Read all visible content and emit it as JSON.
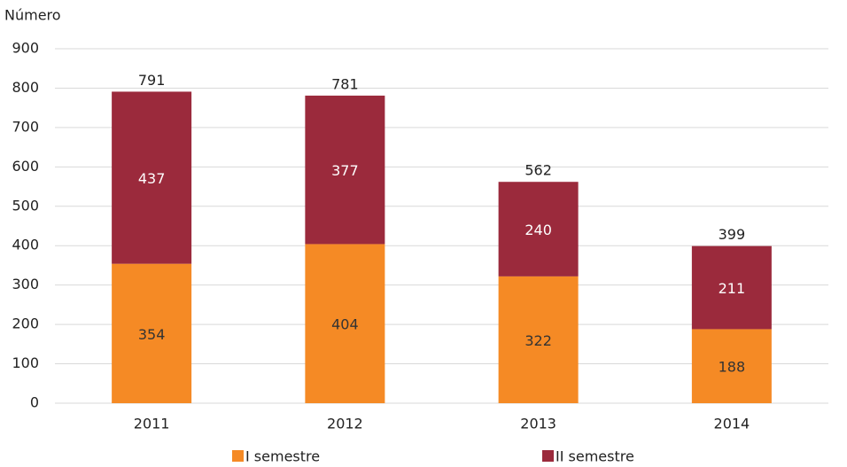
{
  "chart_data": {
    "type": "stacked_bar",
    "y_label": "Número",
    "categories": [
      "2011",
      "2012",
      "2013",
      "2014"
    ],
    "series": [
      {
        "name": "I semestre",
        "color": "#f58a25",
        "values": [
          354,
          404,
          322,
          188
        ]
      },
      {
        "name": "II semestre",
        "color": "#9b2a3c",
        "values": [
          437,
          377,
          240,
          211
        ]
      }
    ],
    "totals": [
      791,
      781,
      562,
      399
    ],
    "ylim": [
      0,
      900
    ],
    "yticks": [
      0,
      100,
      200,
      300,
      400,
      500,
      600,
      700,
      800,
      900
    ],
    "grid": true,
    "legend": "bottom"
  }
}
